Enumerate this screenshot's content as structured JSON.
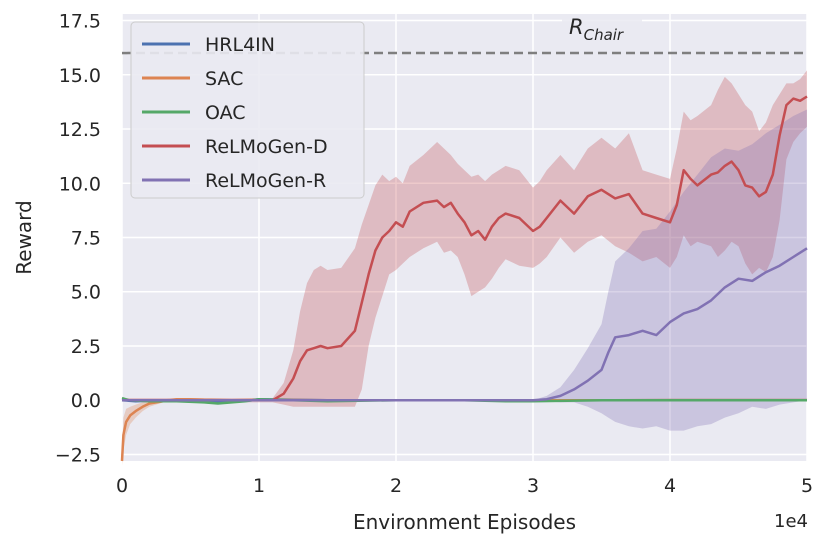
{
  "colors": {
    "background": "#eaeaf2",
    "grid": "#ffffff",
    "ref_line": "#7f7f7f",
    "text": "#262626"
  },
  "chart_data": {
    "type": "line",
    "xlabel": "Environment Episodes",
    "ylabel": "Reward",
    "x_multiplier_label": "1e4",
    "xlim": [
      0,
      5
    ],
    "ylim": [
      -2.8,
      17.8
    ],
    "xticks": [
      0,
      1,
      2,
      3,
      4,
      5
    ],
    "xtick_labels": [
      "0",
      "1",
      "2",
      "3",
      "4",
      "5"
    ],
    "yticks": [
      -2.5,
      0,
      2.5,
      5,
      7.5,
      10,
      12.5,
      15,
      17.5
    ],
    "ytick_labels": [
      "−2.5",
      "0.0",
      "2.5",
      "5.0",
      "7.5",
      "10.0",
      "12.5",
      "15.0",
      "17.5"
    ],
    "grid": true,
    "legend_position": "top-left",
    "reference_line": {
      "y": 16.0,
      "label_main": "R",
      "label_sub": "Chair",
      "style": "dashed"
    },
    "series": [
      {
        "name": "HRL4IN",
        "color": "#4c72b0",
        "x": [
          0,
          0.1,
          0.3,
          0.5,
          0.7,
          0.8,
          0.95,
          1.0,
          1.5,
          2.0,
          2.5,
          3.0,
          3.5,
          4.0,
          4.5,
          5.0
        ],
        "y": [
          0,
          -0.05,
          0,
          -0.05,
          -0.1,
          -0.05,
          0,
          0.05,
          0,
          0,
          0,
          0,
          0,
          0,
          0,
          0
        ]
      },
      {
        "name": "SAC",
        "color": "#dd8452",
        "x": [
          0,
          0.01,
          0.03,
          0.06,
          0.1,
          0.15,
          0.2,
          0.3,
          0.4,
          0.5,
          0.6,
          0.8,
          1.0,
          1.5,
          2.0,
          2.5,
          3.0,
          3.5,
          4.0,
          4.5,
          5.0
        ],
        "y": [
          -2.8,
          -1.6,
          -1.0,
          -0.7,
          -0.5,
          -0.3,
          -0.15,
          -0.05,
          0.05,
          0.05,
          0.02,
          0,
          0.02,
          0,
          0,
          0,
          0,
          0,
          0,
          0,
          0
        ],
        "band_lower": [
          -3.0,
          -2.3,
          -1.6,
          -1.1,
          -0.8,
          -0.5,
          -0.3,
          -0.1,
          -0.05,
          -0.05,
          -0.05,
          -0.05,
          -0.05,
          -0.05,
          -0.05,
          -0.05,
          -0.05,
          -0.05,
          -0.05,
          -0.05,
          -0.05
        ],
        "band_upper": [
          -2.4,
          -0.8,
          -0.4,
          -0.3,
          -0.2,
          -0.1,
          0,
          0.05,
          0.1,
          0.1,
          0.08,
          0.05,
          0.05,
          0.05,
          0.05,
          0.05,
          0.05,
          0.05,
          0.1,
          0.1,
          0.1
        ]
      },
      {
        "name": "OAC",
        "color": "#55a868",
        "x": [
          0,
          0.05,
          0.2,
          0.4,
          0.6,
          0.7,
          0.9,
          1.0,
          1.5,
          2.0,
          2.5,
          2.8,
          3.0,
          3.5,
          4.0,
          4.5,
          5.0
        ],
        "y": [
          0.1,
          0,
          -0.05,
          -0.05,
          -0.1,
          -0.15,
          -0.05,
          0.05,
          -0.05,
          0,
          0,
          -0.05,
          -0.05,
          0,
          0,
          0,
          0
        ]
      },
      {
        "name": "ReLMoGen-D",
        "color": "#c44e52",
        "x": [
          0,
          0.2,
          0.4,
          0.6,
          0.8,
          1.0,
          1.1,
          1.18,
          1.25,
          1.3,
          1.35,
          1.4,
          1.45,
          1.5,
          1.6,
          1.7,
          1.75,
          1.8,
          1.85,
          1.9,
          1.95,
          2.0,
          2.05,
          2.1,
          2.2,
          2.3,
          2.35,
          2.4,
          2.45,
          2.5,
          2.55,
          2.6,
          2.65,
          2.7,
          2.75,
          2.8,
          2.9,
          3.0,
          3.05,
          3.1,
          3.2,
          3.3,
          3.4,
          3.5,
          3.6,
          3.7,
          3.8,
          3.9,
          4.0,
          4.05,
          4.1,
          4.15,
          4.2,
          4.3,
          4.35,
          4.4,
          4.45,
          4.5,
          4.55,
          4.6,
          4.65,
          4.7,
          4.75,
          4.8,
          4.85,
          4.9,
          4.95,
          5.0
        ],
        "y": [
          0,
          0,
          0,
          0,
          0,
          0,
          0,
          0.3,
          1.0,
          1.8,
          2.3,
          2.4,
          2.5,
          2.4,
          2.5,
          3.2,
          4.5,
          5.8,
          6.9,
          7.5,
          7.8,
          8.2,
          8.0,
          8.7,
          9.1,
          9.2,
          8.9,
          9.1,
          8.6,
          8.2,
          7.6,
          7.8,
          7.4,
          8.0,
          8.4,
          8.6,
          8.4,
          7.8,
          8.0,
          8.4,
          9.2,
          8.6,
          9.4,
          9.7,
          9.3,
          9.5,
          8.6,
          8.4,
          8.2,
          9.0,
          10.6,
          10.2,
          9.9,
          10.4,
          10.5,
          10.8,
          11.0,
          10.6,
          9.9,
          9.8,
          9.4,
          9.6,
          10.4,
          12.2,
          13.6,
          13.9,
          13.8,
          14.0
        ],
        "band_lower": [
          0,
          -0.1,
          -0.1,
          -0.1,
          -0.1,
          -0.1,
          -0.1,
          -0.2,
          -0.3,
          -0.3,
          -0.3,
          -0.3,
          -0.3,
          -0.3,
          -0.3,
          -0.3,
          0.5,
          2.5,
          3.8,
          4.8,
          5.8,
          6.0,
          6.3,
          6.6,
          7.0,
          7.3,
          6.8,
          6.9,
          6.6,
          5.8,
          4.8,
          5.0,
          5.2,
          5.6,
          6.1,
          6.5,
          6.2,
          6.1,
          6.3,
          6.6,
          7.5,
          6.8,
          7.3,
          7.6,
          7.1,
          6.8,
          6.4,
          6.6,
          6.1,
          6.6,
          7.6,
          7.1,
          7.3,
          7.1,
          6.6,
          6.9,
          7.3,
          7.1,
          6.3,
          5.8,
          6.1,
          5.9,
          6.6,
          8.3,
          11.1,
          11.9,
          12.3,
          12.6
        ],
        "band_upper": [
          0.1,
          0.1,
          0.1,
          0.1,
          0.1,
          0.1,
          0.1,
          0.8,
          2.3,
          4.1,
          5.4,
          6.0,
          6.2,
          6.0,
          6.1,
          7.0,
          8.1,
          9.0,
          9.9,
          10.4,
          10.1,
          10.3,
          10.0,
          10.8,
          11.3,
          11.9,
          11.6,
          11.3,
          10.9,
          10.6,
          10.3,
          10.4,
          10.1,
          10.4,
          10.6,
          10.8,
          10.6,
          9.8,
          10.1,
          10.6,
          11.3,
          10.6,
          11.6,
          12.1,
          11.6,
          12.3,
          10.6,
          10.4,
          10.2,
          11.6,
          13.3,
          12.9,
          13.1,
          13.6,
          14.3,
          14.9,
          14.6,
          14.1,
          13.6,
          13.3,
          12.4,
          12.8,
          13.6,
          14.1,
          14.6,
          14.6,
          14.8,
          15.2
        ]
      },
      {
        "name": "ReLMoGen-R",
        "color": "#8172b3",
        "x": [
          0,
          0.5,
          1.0,
          1.5,
          2.0,
          2.5,
          3.0,
          3.1,
          3.2,
          3.3,
          3.4,
          3.5,
          3.55,
          3.6,
          3.7,
          3.8,
          3.9,
          4.0,
          4.1,
          4.2,
          4.3,
          4.4,
          4.5,
          4.6,
          4.7,
          4.8,
          4.9,
          5.0
        ],
        "y": [
          0,
          0,
          0,
          0,
          0,
          0,
          0,
          0.05,
          0.2,
          0.5,
          0.9,
          1.4,
          2.2,
          2.9,
          3.0,
          3.2,
          3.0,
          3.6,
          4.0,
          4.2,
          4.6,
          5.2,
          5.6,
          5.5,
          5.9,
          6.2,
          6.6,
          7.0
        ],
        "band_lower": [
          0,
          0,
          0,
          0,
          0,
          0,
          0,
          -0.05,
          -0.1,
          -0.1,
          -0.3,
          -0.6,
          -0.8,
          -1.0,
          -1.2,
          -1.3,
          -1.2,
          -1.4,
          -1.4,
          -1.2,
          -1.1,
          -0.8,
          -0.6,
          -0.3,
          -0.4,
          -0.2,
          -0.1,
          0
        ],
        "band_upper": [
          0,
          0,
          0,
          0,
          0,
          0,
          0,
          0.2,
          0.6,
          1.4,
          2.4,
          3.5,
          5.0,
          6.4,
          7.0,
          7.8,
          7.9,
          8.7,
          9.6,
          10.4,
          11.2,
          11.6,
          11.5,
          11.8,
          12.3,
          12.7,
          13.1,
          13.4
        ]
      }
    ]
  }
}
